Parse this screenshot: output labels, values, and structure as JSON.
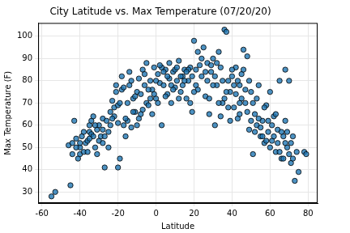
{
  "chart_data": {
    "type": "scatter",
    "title": "City Latitude vs. Max Temperature (07/20/20)",
    "x_label": "Latitude",
    "y_label": "Max Temperature (F)",
    "x": [
      -55,
      -53,
      -45,
      -46,
      -44,
      -43,
      -42,
      -41,
      -40,
      -40,
      -39,
      -38,
      -37,
      -36,
      -35,
      -35,
      -34,
      -34,
      -33,
      -33,
      -32,
      -31,
      -30,
      -29,
      -28,
      -28,
      -27,
      -26,
      -25,
      -24,
      -23,
      -22,
      -22,
      -21,
      -20,
      -20,
      -19,
      -18,
      -18,
      -17,
      -16,
      -15,
      -14,
      -14,
      -13,
      -12,
      -11,
      -10,
      -9,
      -9,
      -8,
      -7,
      -6,
      -5,
      -5,
      -4,
      -3,
      -2,
      -1,
      0,
      1,
      2,
      3,
      4,
      5,
      6,
      7,
      8,
      9,
      10,
      11,
      12,
      13,
      14,
      15,
      16,
      17,
      18,
      19,
      20,
      21,
      22,
      23,
      24,
      25,
      26,
      27,
      28,
      29,
      30,
      31,
      32,
      33,
      34,
      35,
      36,
      37,
      38,
      39,
      40,
      41,
      42,
      43,
      44,
      45,
      46,
      47,
      48,
      49,
      50,
      51,
      52,
      53,
      54,
      55,
      56,
      57,
      58,
      59,
      60,
      61,
      62,
      63,
      64,
      65,
      66,
      67,
      68,
      68,
      69,
      70,
      71,
      72,
      73,
      74,
      75,
      78,
      79,
      -38,
      -36,
      -31,
      -30,
      -27,
      -25,
      -23,
      -21,
      -19,
      -17,
      -15,
      -13,
      -11,
      -10,
      -7,
      -6,
      -4,
      -2,
      0,
      1,
      3,
      5,
      6,
      8,
      10,
      12,
      14,
      15,
      17,
      19,
      21,
      22,
      24,
      26,
      27,
      29,
      31,
      32,
      34,
      35,
      37,
      38,
      40,
      41,
      42,
      43,
      44,
      45,
      47,
      48,
      49,
      50,
      51,
      52,
      53,
      54,
      55,
      56,
      57,
      58,
      59,
      60,
      61,
      62,
      63,
      64,
      65,
      66,
      67,
      68,
      69,
      70,
      71,
      72,
      46,
      44,
      39,
      36,
      33,
      30,
      28,
      20,
      18,
      16,
      13,
      11,
      9,
      7,
      4,
      2,
      -1,
      -3,
      -8,
      -12,
      -16,
      -20,
      -24,
      -28,
      -32,
      -35,
      -42,
      -44,
      -40
    ],
    "values": [
      28,
      30,
      33,
      51,
      52,
      62,
      54,
      45,
      47,
      50,
      55,
      48,
      52,
      53,
      60,
      57,
      56,
      62,
      55,
      64,
      50,
      58,
      53,
      55,
      63,
      58,
      41,
      62,
      50,
      66,
      71,
      68,
      64,
      75,
      69,
      41,
      45,
      82,
      76,
      60,
      55,
      70,
      84,
      78,
      59,
      72,
      66,
      75,
      81,
      63,
      74,
      85,
      78,
      70,
      88,
      69,
      80,
      76,
      86,
      72,
      83,
      79,
      60,
      78,
      85,
      74,
      81,
      70,
      84,
      77,
      80,
      89,
      75,
      82,
      85,
      72,
      80,
      86,
      66,
      98,
      78,
      93,
      87,
      82,
      95,
      73,
      88,
      65,
      84,
      90,
      60,
      78,
      93,
      86,
      70,
      103,
      102,
      80,
      75,
      82,
      68,
      86,
      63,
      78,
      72,
      94,
      70,
      91,
      58,
      75,
      47,
      65,
      60,
      78,
      55,
      62,
      52,
      69,
      57,
      75,
      53,
      64,
      48,
      58,
      80,
      45,
      55,
      85,
      62,
      50,
      80,
      43,
      55,
      35,
      48,
      39,
      48,
      47,
      57,
      48,
      47,
      60,
      55,
      57,
      63,
      78,
      70,
      77,
      62,
      80,
      73,
      60,
      67,
      83,
      76,
      65,
      80,
      70,
      86,
      73,
      82,
      78,
      85,
      72,
      78,
      80,
      85,
      82,
      85,
      76,
      90,
      84,
      80,
      87,
      82,
      88,
      64,
      80,
      75,
      68,
      85,
      78,
      74,
      80,
      70,
      83,
      76,
      66,
      80,
      62,
      70,
      57,
      72,
      63,
      59,
      55,
      68,
      53,
      62,
      50,
      60,
      55,
      65,
      52,
      48,
      57,
      45,
      52,
      57,
      47,
      52,
      45,
      85,
      65,
      62,
      72,
      70,
      78,
      72,
      75,
      70,
      84,
      82,
      86,
      76,
      88,
      84,
      87,
      74,
      72,
      65,
      66,
      63,
      61,
      60,
      52,
      60,
      54,
      50,
      47,
      52
    ],
    "color": "#1f77b4",
    "marker": "circle",
    "xlim": [
      -62,
      85
    ],
    "xticks": [
      -60,
      -40,
      -20,
      0,
      20,
      40,
      60,
      80
    ],
    "ylim": [
      25,
      106
    ],
    "yticks": [
      30,
      40,
      50,
      60,
      70,
      80,
      90,
      100
    ],
    "grid": true
  }
}
